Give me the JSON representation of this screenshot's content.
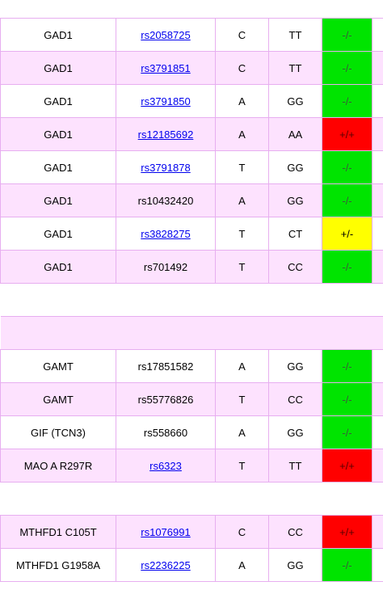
{
  "sections": [
    {
      "rows": [
        {
          "gene": "GAD1",
          "rsid": "rs2058725",
          "link": true,
          "allele": "C",
          "genotype": "TT",
          "result": "-/-",
          "status": "green",
          "shade": "white"
        },
        {
          "gene": "GAD1",
          "rsid": "rs3791851",
          "link": true,
          "allele": "C",
          "genotype": "TT",
          "result": "-/-",
          "status": "green",
          "shade": "pink"
        },
        {
          "gene": "GAD1",
          "rsid": "rs3791850",
          "link": true,
          "allele": "A",
          "genotype": "GG",
          "result": "-/-",
          "status": "green",
          "shade": "white"
        },
        {
          "gene": "GAD1",
          "rsid": "rs12185692",
          "link": true,
          "allele": "A",
          "genotype": "AA",
          "result": "+/+",
          "status": "red",
          "shade": "pink"
        },
        {
          "gene": "GAD1",
          "rsid": "rs3791878",
          "link": true,
          "allele": "T",
          "genotype": "GG",
          "result": "-/-",
          "status": "green",
          "shade": "white"
        },
        {
          "gene": "GAD1",
          "rsid": "rs10432420",
          "link": false,
          "allele": "A",
          "genotype": "GG",
          "result": "-/-",
          "status": "green",
          "shade": "pink"
        },
        {
          "gene": "GAD1",
          "rsid": "rs3828275",
          "link": true,
          "allele": "T",
          "genotype": "CT",
          "result": "+/-",
          "status": "yellow",
          "shade": "white"
        },
        {
          "gene": "GAD1",
          "rsid": "rs701492",
          "link": false,
          "allele": "T",
          "genotype": "CC",
          "result": "-/-",
          "status": "green",
          "shade": "pink"
        }
      ]
    },
    {
      "rows": [
        {
          "gene": "GAMT",
          "rsid": "rs17851582",
          "link": false,
          "allele": "A",
          "genotype": "GG",
          "result": "-/-",
          "status": "green",
          "shade": "white"
        },
        {
          "gene": "GAMT",
          "rsid": "rs55776826",
          "link": false,
          "allele": "T",
          "genotype": "CC",
          "result": "-/-",
          "status": "green",
          "shade": "pink"
        },
        {
          "gene": "GIF (TCN3)",
          "rsid": "rs558660",
          "link": false,
          "allele": "A",
          "genotype": "GG",
          "result": "-/-",
          "status": "green",
          "shade": "white"
        },
        {
          "gene": "MAO A R297R",
          "rsid": "rs6323",
          "link": true,
          "allele": "T",
          "genotype": "TT",
          "result": "+/+",
          "status": "red",
          "shade": "pink"
        }
      ]
    },
    {
      "rows": [
        {
          "gene": "MTHFD1 C105T",
          "rsid": "rs1076991",
          "link": true,
          "allele": "C",
          "genotype": "CC",
          "result": "+/+",
          "status": "red",
          "shade": "pink"
        },
        {
          "gene": "MTHFD1 G1958A",
          "rsid": "rs2236225",
          "link": true,
          "allele": "A",
          "genotype": "GG",
          "result": "-/-",
          "status": "green",
          "shade": "white"
        }
      ]
    }
  ],
  "colors": {
    "green": "#00e400",
    "red": "#ff0000",
    "yellow": "#ffff00",
    "pink_row": "#fde2fe",
    "border": "#e7aef0",
    "link": "#0000ee"
  }
}
